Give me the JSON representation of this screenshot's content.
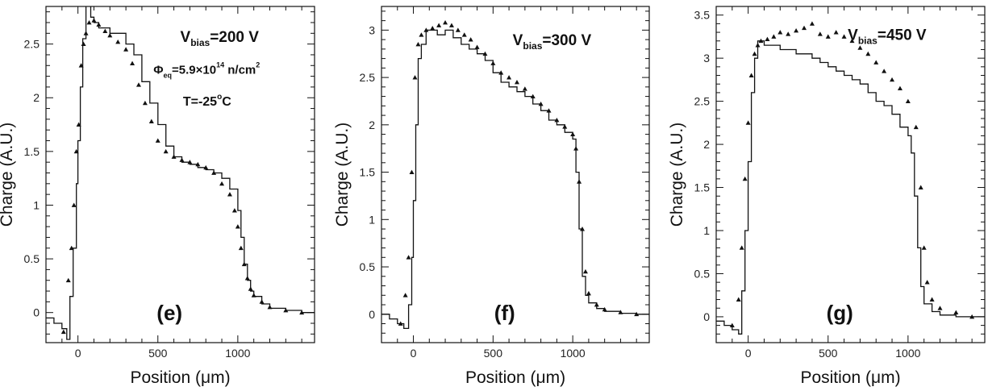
{
  "chart_data": [
    {
      "type": "line",
      "panel": "(e)",
      "xlabel": "Position (μm)",
      "ylabel": "Charge (A.U.)",
      "xlim": [
        -200,
        1480
      ],
      "ylim": [
        -0.28,
        2.85
      ],
      "xticks": [
        0,
        500,
        1000
      ],
      "yticks": [
        0,
        0.5,
        1,
        1.5,
        2,
        2.5
      ],
      "annotations": [
        {
          "main": "V",
          "sub": "bias",
          "rest": "=200 V"
        },
        {
          "main": "Φ",
          "sub": "eq",
          "rest": "=5.9×10",
          "sup": "14",
          "rest2": " n/cm",
          "sup2": "2"
        },
        {
          "main": "T=-25",
          "sup": "o",
          "rest": "C"
        }
      ],
      "series": [
        {
          "style": "histogram-line",
          "x": [
            -200,
            -150,
            -100,
            -70,
            -50,
            -30,
            -10,
            0,
            15,
            30,
            50,
            80,
            100,
            130,
            200,
            300,
            350,
            400,
            450,
            500,
            550,
            600,
            650,
            700,
            750,
            800,
            850,
            900,
            950,
            1000,
            1020,
            1040,
            1060,
            1080,
            1100,
            1150,
            1200,
            1300,
            1400,
            1480
          ],
          "y": [
            -0.05,
            -0.1,
            -0.15,
            -0.25,
            0.15,
            0.6,
            1.2,
            1.6,
            2.1,
            2.55,
            2.9,
            2.75,
            2.7,
            2.65,
            2.6,
            2.5,
            2.4,
            2.15,
            1.95,
            1.75,
            1.55,
            1.45,
            1.4,
            1.38,
            1.35,
            1.33,
            1.3,
            1.25,
            1.15,
            0.95,
            0.7,
            0.45,
            0.3,
            0.2,
            0.15,
            0.08,
            0.04,
            0.02,
            0.0,
            0.0
          ]
        },
        {
          "style": "markers",
          "x": [
            -90,
            -60,
            -40,
            -25,
            -10,
            5,
            20,
            35,
            50,
            70,
            100,
            130,
            170,
            200,
            250,
            300,
            340,
            380,
            420,
            460,
            500,
            550,
            600,
            650,
            700,
            750,
            800,
            850,
            900,
            950,
            980,
            1000,
            1020,
            1040,
            1060,
            1080,
            1100,
            1150,
            1200,
            1300,
            1400
          ],
          "y": [
            -0.18,
            0.3,
            0.6,
            1.0,
            1.5,
            1.75,
            2.3,
            2.5,
            2.6,
            2.7,
            2.72,
            2.68,
            2.62,
            2.58,
            2.52,
            2.45,
            2.32,
            2.12,
            1.95,
            1.78,
            1.6,
            1.5,
            1.45,
            1.42,
            1.4,
            1.38,
            1.35,
            1.3,
            1.2,
            1.1,
            0.95,
            0.8,
            0.6,
            0.45,
            0.32,
            0.22,
            0.16,
            0.1,
            0.05,
            0.02,
            0.0
          ]
        }
      ]
    },
    {
      "type": "line",
      "panel": "(f)",
      "xlabel": "Position (μm)",
      "ylabel": "Charge (A.U.)",
      "xlim": [
        -200,
        1480
      ],
      "ylim": [
        -0.3,
        3.25
      ],
      "xticks": [
        0,
        500,
        1000
      ],
      "yticks": [
        0,
        0.5,
        1,
        1.5,
        2,
        2.5,
        3
      ],
      "annotations": [
        {
          "main": "V",
          "sub": "bias",
          "rest": "=300 V"
        }
      ],
      "series": [
        {
          "style": "histogram-line",
          "x": [
            -200,
            -150,
            -100,
            -60,
            -30,
            -10,
            0,
            15,
            30,
            50,
            80,
            150,
            200,
            250,
            300,
            350,
            400,
            450,
            500,
            550,
            600,
            650,
            700,
            750,
            800,
            850,
            900,
            950,
            1000,
            1020,
            1040,
            1060,
            1080,
            1100,
            1150,
            1200,
            1300,
            1400,
            1480
          ],
          "y": [
            0.0,
            -0.05,
            -0.1,
            -0.15,
            0.1,
            0.6,
            1.2,
            2.0,
            2.7,
            2.85,
            3.0,
            2.95,
            3.0,
            2.92,
            2.85,
            2.8,
            2.75,
            2.68,
            2.55,
            2.45,
            2.4,
            2.35,
            2.3,
            2.22,
            2.15,
            2.05,
            2.0,
            1.92,
            1.85,
            1.5,
            0.9,
            0.4,
            0.2,
            0.12,
            0.06,
            0.03,
            0.01,
            0.0,
            0.0
          ]
        },
        {
          "style": "markers",
          "x": [
            -80,
            -50,
            -30,
            -10,
            10,
            30,
            50,
            80,
            120,
            160,
            200,
            240,
            280,
            320,
            360,
            400,
            450,
            500,
            550,
            600,
            650,
            700,
            750,
            800,
            850,
            900,
            950,
            1000,
            1020,
            1040,
            1060,
            1080,
            1100,
            1150,
            1200,
            1300,
            1400
          ],
          "y": [
            -0.1,
            0.2,
            0.6,
            1.5,
            2.5,
            2.85,
            2.95,
            3.0,
            3.02,
            3.05,
            3.08,
            3.05,
            3.0,
            2.95,
            2.9,
            2.82,
            2.75,
            2.65,
            2.55,
            2.5,
            2.45,
            2.38,
            2.3,
            2.22,
            2.15,
            2.05,
            1.98,
            1.9,
            1.75,
            1.4,
            0.9,
            0.45,
            0.22,
            0.1,
            0.05,
            0.02,
            0.0
          ]
        }
      ]
    },
    {
      "type": "line",
      "panel": "(g)",
      "xlabel": "Position (μm)",
      "ylabel": "Charge (A.U.)",
      "xlim": [
        -200,
        1480
      ],
      "ylim": [
        -0.3,
        3.6
      ],
      "xticks": [
        0,
        500,
        1000
      ],
      "yticks": [
        0,
        0.5,
        1,
        1.5,
        2,
        2.5,
        3,
        3.5
      ],
      "annotations": [
        {
          "main": "V",
          "sub": "bias",
          "rest": "=450 V"
        }
      ],
      "series": [
        {
          "style": "histogram-line",
          "x": [
            -200,
            -150,
            -100,
            -60,
            -40,
            -20,
            0,
            20,
            40,
            60,
            100,
            200,
            300,
            400,
            450,
            500,
            550,
            600,
            650,
            700,
            750,
            800,
            850,
            900,
            950,
            1000,
            1020,
            1040,
            1060,
            1080,
            1100,
            1150,
            1200,
            1300,
            1400,
            1480
          ],
          "y": [
            -0.05,
            -0.1,
            -0.15,
            -0.2,
            0.3,
            1.0,
            1.8,
            2.6,
            3.0,
            3.2,
            3.15,
            3.1,
            3.05,
            3.0,
            2.95,
            2.9,
            2.85,
            2.8,
            2.75,
            2.7,
            2.6,
            2.5,
            2.45,
            2.35,
            2.2,
            2.1,
            1.9,
            1.4,
            0.8,
            0.35,
            0.15,
            0.06,
            0.02,
            0.0,
            0.0,
            0.0
          ]
        },
        {
          "style": "markers",
          "x": [
            -100,
            -60,
            -40,
            -20,
            0,
            20,
            40,
            60,
            80,
            120,
            160,
            200,
            250,
            300,
            350,
            400,
            450,
            500,
            550,
            600,
            650,
            700,
            750,
            800,
            850,
            900,
            950,
            1000,
            1050,
            1080,
            1100,
            1120,
            1150,
            1200,
            1300,
            1400
          ],
          "y": [
            -0.1,
            0.2,
            0.8,
            1.6,
            2.25,
            2.8,
            3.05,
            3.15,
            3.2,
            3.22,
            3.25,
            3.3,
            3.28,
            3.32,
            3.35,
            3.4,
            3.28,
            3.25,
            3.3,
            3.25,
            3.2,
            3.12,
            3.05,
            2.95,
            2.85,
            2.75,
            2.65,
            2.5,
            2.2,
            1.5,
            0.8,
            0.4,
            0.2,
            0.1,
            0.05,
            0.0
          ]
        }
      ]
    }
  ]
}
